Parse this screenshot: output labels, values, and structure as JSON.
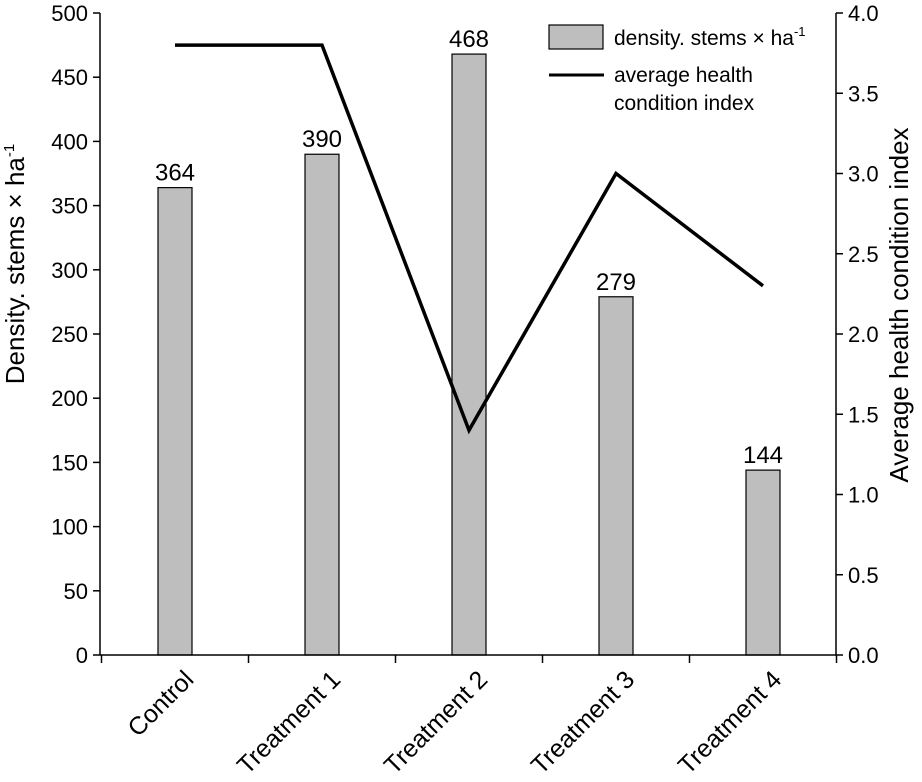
{
  "chart_data": {
    "type": "bar+line",
    "categories": [
      "Control",
      "Treatment 1",
      "Treatment 2",
      "Treatment 3",
      "Treatment 4"
    ],
    "bar_series": {
      "name": "density. stems × ha",
      "name_superscript": "-1",
      "values": [
        364,
        390,
        468,
        279,
        144
      ],
      "data_labels": [
        "364",
        "390",
        "468",
        "279",
        "144"
      ],
      "color": "#bebebe",
      "edge_color": "#000000",
      "axis": "left"
    },
    "line_series": {
      "name_line1": "average health",
      "name_line2": "condition index",
      "values": [
        3.8,
        3.8,
        1.4,
        3.0,
        2.3
      ],
      "color": "#000000",
      "axis": "right"
    },
    "y_left": {
      "label": "Density. stems × ha",
      "label_superscript": "-1",
      "ylim": [
        0,
        500
      ],
      "ticks": [
        0,
        50,
        100,
        150,
        200,
        250,
        300,
        350,
        400,
        450,
        500
      ],
      "tick_labels": [
        "0",
        "50",
        "100",
        "150",
        "200",
        "250",
        "300",
        "350",
        "400",
        "450",
        "500"
      ]
    },
    "y_right": {
      "label": "Average health condition index",
      "ylim": [
        0,
        4.0
      ],
      "ticks": [
        0,
        0.5,
        1.0,
        1.5,
        2.0,
        2.5,
        3.0,
        3.5,
        4.0
      ],
      "tick_labels": [
        "0.0",
        "0.5",
        "1.0",
        "1.5",
        "2.0",
        "2.5",
        "3.0",
        "3.5",
        "4.0"
      ]
    },
    "grid": false,
    "legend_position": "top-right"
  }
}
